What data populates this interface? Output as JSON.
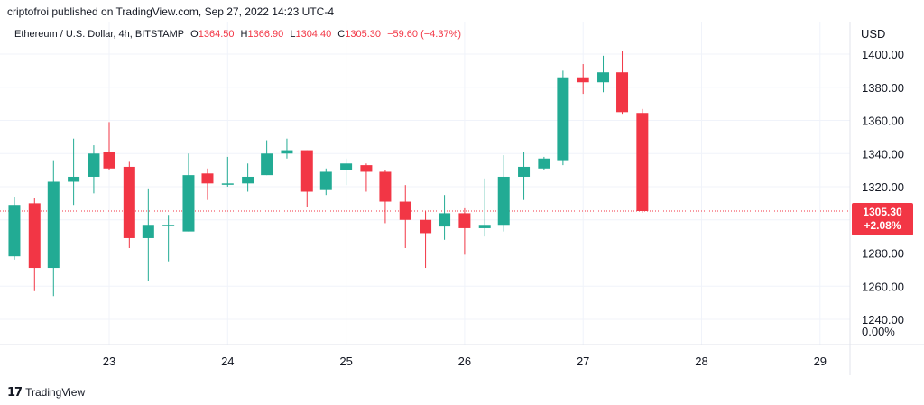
{
  "header": {
    "publisher_text": "criptofroi published on TradingView.com, Sep 27, 2022 14:23 UTC-4"
  },
  "legend": {
    "symbol": "Ethereum / U.S. Dollar, 4h, BITSTAMP",
    "open_label": "O",
    "open_value": "1364.50",
    "high_label": "H",
    "high_value": "1366.90",
    "low_label": "L",
    "low_value": "1304.40",
    "close_label": "C",
    "close_value": "1305.30",
    "change_value": "−59.60 (−4.37%)"
  },
  "axis": {
    "currency": "USD"
  },
  "price_badge": {
    "price": "1305.30",
    "change": "+2.08%"
  },
  "footer": {
    "brand_logo": "𝟭𝟳",
    "brand_name": "TradingView"
  },
  "colors": {
    "up": "#22ab94",
    "down": "#f23645",
    "grid": "#f0f3fa",
    "price_line": "#f23645"
  },
  "chart_data": {
    "type": "candlestick",
    "ylim": [
      1230,
      1410
    ],
    "xlim": [
      22.15,
      29.3
    ],
    "y_ticks": [
      "1400.00",
      "1380.00",
      "1360.00",
      "1340.00",
      "1320.00",
      "1300.00",
      "1280.00",
      "1260.00",
      "1240.00"
    ],
    "y_tick_values": [
      1400,
      1380,
      1360,
      1340,
      1320,
      1300,
      1280,
      1260,
      1240
    ],
    "extra_tick": "0.00%",
    "x_ticks": [
      "23",
      "24",
      "25",
      "26",
      "27",
      "28",
      "29"
    ],
    "x_tick_values": [
      23,
      24,
      25,
      26,
      27,
      28,
      29
    ],
    "last_price": 1305.3,
    "candles": [
      {
        "x": 22.2,
        "o": 1278,
        "h": 1314,
        "l": 1276,
        "c": 1309
      },
      {
        "x": 22.37,
        "o": 1310,
        "h": 1313,
        "l": 1257,
        "c": 1271
      },
      {
        "x": 22.53,
        "o": 1271,
        "h": 1336,
        "l": 1254,
        "c": 1323
      },
      {
        "x": 22.7,
        "o": 1323,
        "h": 1349,
        "l": 1309,
        "c": 1326
      },
      {
        "x": 22.87,
        "o": 1326,
        "h": 1345,
        "l": 1316,
        "c": 1340
      },
      {
        "x": 23.0,
        "o": 1341,
        "h": 1359,
        "l": 1330,
        "c": 1331
      },
      {
        "x": 23.17,
        "o": 1332,
        "h": 1335,
        "l": 1283,
        "c": 1289
      },
      {
        "x": 23.33,
        "o": 1289,
        "h": 1319,
        "l": 1263,
        "c": 1297
      },
      {
        "x": 23.5,
        "o": 1297,
        "h": 1303,
        "l": 1275,
        "c": 1297
      },
      {
        "x": 23.67,
        "o": 1293,
        "h": 1340,
        "l": 1293,
        "c": 1327
      },
      {
        "x": 23.83,
        "o": 1328,
        "h": 1331,
        "l": 1312,
        "c": 1322
      },
      {
        "x": 24.0,
        "o": 1322,
        "h": 1338,
        "l": 1320,
        "c": 1322
      },
      {
        "x": 24.17,
        "o": 1322,
        "h": 1334,
        "l": 1317,
        "c": 1326
      },
      {
        "x": 24.33,
        "o": 1327,
        "h": 1348,
        "l": 1327,
        "c": 1340
      },
      {
        "x": 24.5,
        "o": 1340,
        "h": 1349,
        "l": 1337,
        "c": 1342
      },
      {
        "x": 24.67,
        "o": 1342,
        "h": 1342,
        "l": 1308,
        "c": 1317
      },
      {
        "x": 24.83,
        "o": 1318,
        "h": 1331,
        "l": 1315,
        "c": 1329
      },
      {
        "x": 25.0,
        "o": 1330,
        "h": 1337,
        "l": 1321,
        "c": 1334
      },
      {
        "x": 25.17,
        "o": 1333,
        "h": 1334,
        "l": 1317,
        "c": 1329
      },
      {
        "x": 25.33,
        "o": 1329,
        "h": 1330,
        "l": 1298,
        "c": 1311
      },
      {
        "x": 25.5,
        "o": 1311,
        "h": 1321,
        "l": 1283,
        "c": 1300
      },
      {
        "x": 25.67,
        "o": 1300,
        "h": 1305,
        "l": 1271,
        "c": 1292
      },
      {
        "x": 25.83,
        "o": 1296,
        "h": 1315,
        "l": 1288,
        "c": 1304
      },
      {
        "x": 26.0,
        "o": 1304,
        "h": 1307,
        "l": 1279,
        "c": 1295
      },
      {
        "x": 26.17,
        "o": 1295,
        "h": 1325,
        "l": 1290,
        "c": 1297
      },
      {
        "x": 26.33,
        "o": 1297,
        "h": 1339,
        "l": 1293,
        "c": 1326
      },
      {
        "x": 26.5,
        "o": 1326,
        "h": 1341,
        "l": 1312,
        "c": 1332
      },
      {
        "x": 26.67,
        "o": 1331,
        "h": 1338,
        "l": 1330,
        "c": 1337
      },
      {
        "x": 26.83,
        "o": 1336,
        "h": 1390,
        "l": 1333,
        "c": 1386
      },
      {
        "x": 27.0,
        "o": 1386,
        "h": 1394,
        "l": 1376,
        "c": 1383
      },
      {
        "x": 27.17,
        "o": 1383,
        "h": 1399,
        "l": 1377,
        "c": 1389
      },
      {
        "x": 27.33,
        "o": 1389,
        "h": 1402,
        "l": 1364,
        "c": 1365
      },
      {
        "x": 27.5,
        "o": 1364.5,
        "h": 1366.9,
        "l": 1304.4,
        "c": 1305.3
      }
    ]
  }
}
